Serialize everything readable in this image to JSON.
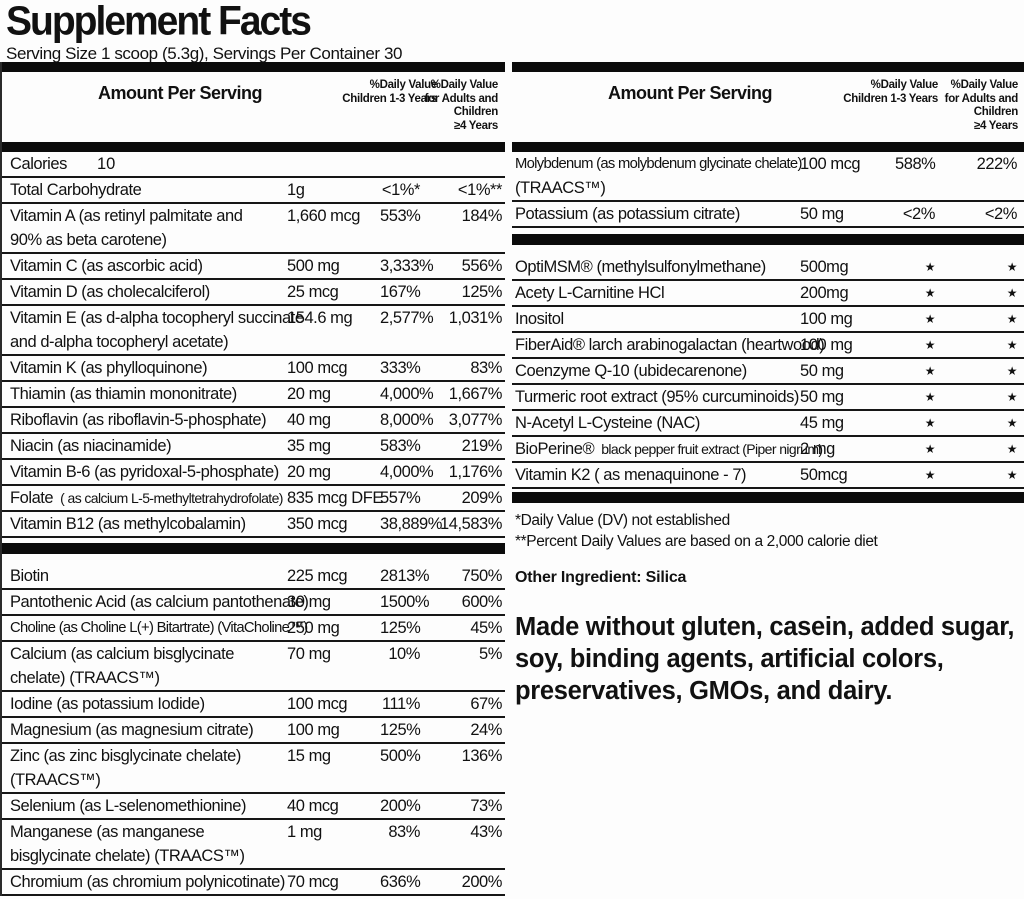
{
  "title": "Supplement Facts",
  "serving_line": "Serving Size 1 scoop (5.3g), Servings Per Container 30",
  "columns_header": {
    "amount_label": "Amount Per Serving",
    "dv_children_label": "%Daily Value\nChildren 1-3 Years",
    "dv_adults_label": "%Daily Value\nfor Adults and\nChildren\n≥4 Years"
  },
  "left_table": {
    "calories": {
      "name": "Calories",
      "value": "10"
    },
    "section1": [
      {
        "name": "Total Carbohydrate",
        "amount": "1g",
        "dvc": "<1%*",
        "dva": "<1%**"
      },
      {
        "name": "Vitamin A (as retinyl palmitate and",
        "name2": "90% as beta carotene)",
        "amount": "1,660 mcg",
        "dvc": "553%",
        "dva": "184%"
      },
      {
        "name": "Vitamin C (as ascorbic acid)",
        "amount": "500 mg",
        "dvc": "3,333%",
        "dva": "556%"
      },
      {
        "name": "Vitamin D (as cholecalciferol)",
        "amount": "25 mcg",
        "dvc": "167%",
        "dva": "125%"
      },
      {
        "name": "Vitamin E (as d-alpha tocopheryl succinate",
        "name2": "and d-alpha tocopheryl acetate)",
        "amount": "154.6 mg",
        "dvc": "2,577%",
        "dva": "1,031%"
      },
      {
        "name": "Vitamin K (as phylloquinone)",
        "amount": "100 mcg",
        "dvc": "333%",
        "dva": "83%"
      },
      {
        "name": "Thiamin (as thiamin mononitrate)",
        "amount": "20 mg",
        "dvc": "4,000%",
        "dva": "1,667%"
      },
      {
        "name": "Riboflavin (as riboflavin-5-phosphate)",
        "amount": "40 mg",
        "dvc": "8,000%",
        "dva": "3,077%"
      },
      {
        "name": "Niacin (as niacinamide)",
        "amount": "35 mg",
        "dvc": "583%",
        "dva": "219%"
      },
      {
        "name": "Vitamin B-6 (as pyridoxal-5-phosphate)",
        "amount": "20 mg",
        "dvc": "4,000%",
        "dva": "1,176%"
      },
      {
        "name": "Folate",
        "name_small": "( as calcium L-5-methyltetrahydrofolate)",
        "amount": "835 mcg DFE",
        "dvc": "557%",
        "dva": "209%"
      },
      {
        "name": "Vitamin B12 (as methylcobalamin)",
        "amount": "350 mcg",
        "dvc": "38,889%",
        "dva": "14,583%"
      }
    ],
    "section2": [
      {
        "name": "Biotin",
        "amount": "225 mcg",
        "dvc": "2813%",
        "dva": "750%"
      },
      {
        "name": "Pantothenic Acid (as calcium pantothenate)",
        "amount": "30 mg",
        "dvc": "1500%",
        "dva": "600%"
      },
      {
        "name": "Choline (as Choline L(+) Bitartrate) (VitaCholine™)",
        "small": true,
        "amount": "250 mg",
        "dvc": "125%",
        "dva": "45%"
      },
      {
        "name": "Calcium (as calcium bisglycinate",
        "name2": "chelate) (TRAACS™)",
        "amount": "70 mg",
        "dvc": "10%",
        "dva": "5%"
      },
      {
        "name": "Iodine (as potassium Iodide)",
        "amount": "100 mcg",
        "dvc": "111%",
        "dva": "67%"
      },
      {
        "name": "Magnesium (as magnesium citrate)",
        "amount": "100 mg",
        "dvc": "125%",
        "dva": "24%"
      },
      {
        "name": "Zinc (as zinc bisglycinate chelate)",
        "name2": "(TRAACS™)",
        "amount": "15 mg",
        "dvc": "500%",
        "dva": "136%"
      },
      {
        "name": "Selenium (as L-selenomethionine)",
        "amount": "40 mcg",
        "dvc": "200%",
        "dva": "73%"
      },
      {
        "name": "Manganese (as manganese",
        "name2": "bisglycinate chelate) (TRAACS™)",
        "amount": "1 mg",
        "dvc": "83%",
        "dva": "43%"
      },
      {
        "name": "Chromium (as chromium polynicotinate)",
        "amount": "70 mcg",
        "dvc": "636%",
        "dva": "200%"
      }
    ]
  },
  "right_table": {
    "section1": [
      {
        "name": "Molybdenum (as molybdenum glycinate chelate)",
        "name2": "(TRAACS™)",
        "small": true,
        "amount": "100 mcg",
        "dvc": "588%",
        "dva": "222%"
      },
      {
        "name": "Potassium (as potassium citrate)",
        "amount": "50 mg",
        "dvc": "<2%",
        "dva": "<2%"
      }
    ],
    "section2": [
      {
        "name": "OptiMSM® (methylsulfonylmethane)",
        "amount": "500mg",
        "dvc": "★",
        "dva": "★"
      },
      {
        "name": "Acety L-Carnitine HCl",
        "amount": "200mg",
        "dvc": "★",
        "dva": "★"
      },
      {
        "name": "Inositol",
        "amount": "100 mg",
        "dvc": "★",
        "dva": "★"
      },
      {
        "name": "FiberAid® larch arabinogalactan (heartwood)",
        "amount": "100 mg",
        "dvc": "★",
        "dva": "★"
      },
      {
        "name": "Coenzyme Q-10 (ubidecarenone)",
        "amount": "50 mg",
        "dvc": "★",
        "dva": "★"
      },
      {
        "name": "Turmeric root extract (95% curcuminoids)",
        "amount": "50 mg",
        "dvc": "★",
        "dva": "★"
      },
      {
        "name": "N-Acetyl L-Cysteine (NAC)",
        "amount": "45 mg",
        "dvc": "★",
        "dva": "★"
      },
      {
        "name": "BioPerine®",
        "name_small": "black pepper fruit extract (Piper nigrum)",
        "amount": "2 mg",
        "dvc": "★",
        "dva": "★"
      },
      {
        "name": "Vitamin K2 ( as menaquinone - 7)",
        "amount": "50mcg",
        "dvc": "★",
        "dva": "★"
      }
    ]
  },
  "footnotes": {
    "line1": "*Daily Value (DV) not established",
    "line2": "**Percent Daily Values are based on a 2,000 calorie diet"
  },
  "other_ingredient": "Other Ingredient: Silica",
  "made_without": "Made without gluten, casein, added sugar, soy, binding agents, artificial colors, preservatives, GMOs, and dairy.",
  "colors": {
    "text": "#111111",
    "bar": "#0b0b0b",
    "background": "#fdfdfd"
  }
}
